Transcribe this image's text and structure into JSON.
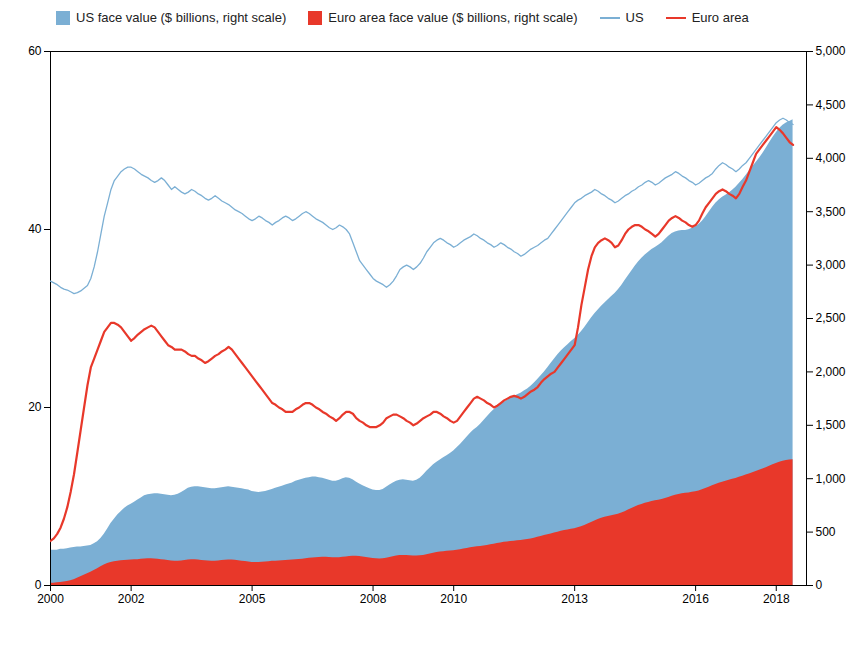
{
  "chart_data": {
    "type": "line",
    "x": [
      2000.0,
      2000.083,
      2000.167,
      2000.25,
      2000.333,
      2000.417,
      2000.5,
      2000.583,
      2000.667,
      2000.75,
      2000.833,
      2000.917,
      2001.0,
      2001.083,
      2001.167,
      2001.25,
      2001.333,
      2001.417,
      2001.5,
      2001.583,
      2001.667,
      2001.75,
      2001.833,
      2001.917,
      2002.0,
      2002.083,
      2002.167,
      2002.25,
      2002.333,
      2002.417,
      2002.5,
      2002.583,
      2002.667,
      2002.75,
      2002.833,
      2002.917,
      2003.0,
      2003.083,
      2003.167,
      2003.25,
      2003.333,
      2003.417,
      2003.5,
      2003.583,
      2003.667,
      2003.75,
      2003.833,
      2003.917,
      2004.0,
      2004.083,
      2004.167,
      2004.25,
      2004.333,
      2004.417,
      2004.5,
      2004.583,
      2004.667,
      2004.75,
      2004.833,
      2004.917,
      2005.0,
      2005.083,
      2005.167,
      2005.25,
      2005.333,
      2005.417,
      2005.5,
      2005.583,
      2005.667,
      2005.75,
      2005.833,
      2005.917,
      2006.0,
      2006.083,
      2006.167,
      2006.25,
      2006.333,
      2006.417,
      2006.5,
      2006.583,
      2006.667,
      2006.75,
      2006.833,
      2006.917,
      2007.0,
      2007.083,
      2007.167,
      2007.25,
      2007.333,
      2007.417,
      2007.5,
      2007.583,
      2007.667,
      2007.75,
      2007.833,
      2007.917,
      2008.0,
      2008.083,
      2008.167,
      2008.25,
      2008.333,
      2008.417,
      2008.5,
      2008.583,
      2008.667,
      2008.75,
      2008.833,
      2008.917,
      2009.0,
      2009.083,
      2009.167,
      2009.25,
      2009.333,
      2009.417,
      2009.5,
      2009.583,
      2009.667,
      2009.75,
      2009.833,
      2009.917,
      2010.0,
      2010.083,
      2010.167,
      2010.25,
      2010.333,
      2010.417,
      2010.5,
      2010.583,
      2010.667,
      2010.75,
      2010.833,
      2010.917,
      2011.0,
      2011.083,
      2011.167,
      2011.25,
      2011.333,
      2011.417,
      2011.5,
      2011.583,
      2011.667,
      2011.75,
      2011.833,
      2011.917,
      2012.0,
      2012.083,
      2012.167,
      2012.25,
      2012.333,
      2012.417,
      2012.5,
      2012.583,
      2012.667,
      2012.75,
      2012.833,
      2012.917,
      2013.0,
      2013.083,
      2013.167,
      2013.25,
      2013.333,
      2013.417,
      2013.5,
      2013.583,
      2013.667,
      2013.75,
      2013.833,
      2013.917,
      2014.0,
      2014.083,
      2014.167,
      2014.25,
      2014.333,
      2014.417,
      2014.5,
      2014.583,
      2014.667,
      2014.75,
      2014.833,
      2014.917,
      2015.0,
      2015.083,
      2015.167,
      2015.25,
      2015.333,
      2015.417,
      2015.5,
      2015.583,
      2015.667,
      2015.75,
      2015.833,
      2015.917,
      2016.0,
      2016.083,
      2016.167,
      2016.25,
      2016.333,
      2016.417,
      2016.5,
      2016.583,
      2016.667,
      2016.75,
      2016.833,
      2016.917,
      2017.0,
      2017.083,
      2017.167,
      2017.25,
      2017.333,
      2017.417,
      2017.5,
      2017.583,
      2017.667,
      2017.75,
      2017.833,
      2017.917,
      2018.0,
      2018.083,
      2018.167,
      2018.25,
      2018.333,
      2018.417
    ],
    "xlim": [
      2000,
      2018.75
    ],
    "xticks": [
      2000,
      2002,
      2005,
      2008,
      2010,
      2013,
      2016,
      2018
    ],
    "ylim": [
      0,
      60
    ],
    "yticks": [
      0,
      20,
      40,
      60
    ],
    "y2lim": [
      0,
      5000
    ],
    "y2ticks": [
      0,
      500,
      {
        "value": 1000,
        "label": "1,000"
      },
      {
        "value": 1500,
        "label": "1,500"
      },
      {
        "value": 2000,
        "label": "2,000"
      },
      {
        "value": 2500,
        "label": "2,500"
      },
      {
        "value": 3000,
        "label": "3,000"
      },
      {
        "value": 3500,
        "label": "3,500"
      },
      {
        "value": 4000,
        "label": "4,000"
      },
      {
        "value": 4500,
        "label": "4,500"
      },
      {
        "value": 5000,
        "label": "5,000"
      }
    ],
    "grid": false,
    "legend": "upper left",
    "series": [
      {
        "name": "US face value ($ billions, right scale)",
        "type": "area",
        "axis": "y2",
        "color": "#7bafd4",
        "values": [
          330,
          330,
          330,
          340,
          340,
          345,
          350,
          355,
          360,
          360,
          365,
          370,
          375,
          390,
          410,
          440,
          480,
          530,
          580,
          620,
          660,
          690,
          720,
          745,
          760,
          780,
          800,
          820,
          840,
          850,
          855,
          860,
          860,
          855,
          850,
          845,
          840,
          845,
          855,
          870,
          890,
          910,
          920,
          925,
          925,
          920,
          915,
          910,
          905,
          905,
          910,
          915,
          920,
          925,
          920,
          915,
          910,
          905,
          900,
          895,
          880,
          875,
          870,
          875,
          880,
          890,
          900,
          910,
          920,
          930,
          940,
          950,
          960,
          975,
          985,
          995,
          1005,
          1010,
          1015,
          1015,
          1010,
          1005,
          995,
          985,
          975,
          975,
          985,
          1000,
          1010,
          1005,
          990,
          970,
          950,
          935,
          920,
          905,
          895,
          890,
          890,
          900,
          920,
          940,
          960,
          975,
          985,
          990,
          985,
          980,
          975,
          985,
          1005,
          1035,
          1070,
          1100,
          1130,
          1155,
          1175,
          1195,
          1215,
          1235,
          1260,
          1290,
          1320,
          1355,
          1390,
          1425,
          1455,
          1480,
          1510,
          1545,
          1580,
          1615,
          1645,
          1670,
          1695,
          1715,
          1735,
          1755,
          1770,
          1785,
          1800,
          1820,
          1840,
          1865,
          1895,
          1930,
          1965,
          2000,
          2040,
          2080,
          2120,
          2160,
          2195,
          2225,
          2255,
          2285,
          2310,
          2340,
          2375,
          2415,
          2460,
          2505,
          2545,
          2580,
          2615,
          2645,
          2675,
          2705,
          2735,
          2770,
          2810,
          2855,
          2900,
          2945,
          2990,
          3030,
          3065,
          3095,
          3120,
          3145,
          3165,
          3185,
          3210,
          3240,
          3270,
          3295,
          3310,
          3320,
          3325,
          3325,
          3330,
          3345,
          3360,
          3380,
          3410,
          3450,
          3495,
          3540,
          3580,
          3610,
          3635,
          3655,
          3675,
          3700,
          3730,
          3765,
          3800,
          3840,
          3880,
          3920,
          3960,
          4000,
          4045,
          4095,
          4145,
          4195,
          4240,
          4280,
          4310,
          4330,
          4345,
          4360
        ]
      },
      {
        "name": "Euro area face value ($ billions, right scale)",
        "type": "area",
        "axis": "y2",
        "color": "#e8382a",
        "values": [
          20,
          22,
          25,
          28,
          32,
          38,
          45,
          55,
          68,
          82,
          95,
          110,
          125,
          140,
          158,
          175,
          192,
          205,
          215,
          222,
          228,
          232,
          235,
          237,
          238,
          240,
          242,
          245,
          248,
          250,
          250,
          248,
          245,
          242,
          238,
          234,
          230,
          228,
          228,
          230,
          234,
          238,
          240,
          240,
          238,
          235,
          232,
          230,
          228,
          228,
          230,
          233,
          236,
          238,
          238,
          236,
          232,
          228,
          224,
          220,
          216,
          215,
          215,
          217,
          220,
          223,
          226,
          228,
          230,
          232,
          234,
          236,
          238,
          240,
          243,
          246,
          250,
          254,
          258,
          261,
          263,
          264,
          264,
          263,
          261,
          260,
          261,
          264,
          268,
          272,
          274,
          274,
          272,
          268,
          263,
          258,
          253,
          250,
          249,
          251,
          256,
          263,
          270,
          276,
          280,
          282,
          281,
          279,
          276,
          276,
          278,
          282,
          288,
          295,
          302,
          308,
          313,
          317,
          320,
          323,
          326,
          330,
          335,
          341,
          347,
          353,
          358,
          362,
          366,
          370,
          375,
          381,
          387,
          393,
          399,
          404,
          408,
          412,
          415,
          418,
          421,
          425,
          430,
          436,
          443,
          451,
          459,
          467,
          475,
          483,
          491,
          499,
          507,
          514,
          520,
          526,
          532,
          540,
          550,
          562,
          576,
          591,
          605,
          618,
          629,
          638,
          645,
          652,
          659,
          667,
          678,
          691,
          706,
          721,
          735,
          748,
          759,
          769,
          778,
          786,
          793,
          799,
          806,
          815,
          825,
          836,
          845,
          853,
          859,
          863,
          867,
          872,
          878,
          886,
          896,
          908,
          921,
          934,
          946,
          957,
          967,
          976,
          985,
          994,
          1003,
          1013,
          1023,
          1034,
          1045,
          1056,
          1067,
          1078,
          1090,
          1103,
          1116,
          1130,
          1143,
          1154,
          1163,
          1170,
          1175,
          1178
        ]
      },
      {
        "name": "US",
        "type": "line",
        "color": "#7bafd4",
        "values": [
          34.2,
          34.0,
          33.8,
          33.5,
          33.3,
          33.2,
          33.0,
          32.8,
          32.9,
          33.1,
          33.4,
          33.7,
          34.5,
          35.8,
          37.5,
          39.5,
          41.5,
          43.0,
          44.5,
          45.5,
          46.0,
          46.5,
          46.8,
          47.0,
          47.0,
          46.8,
          46.5,
          46.2,
          46.0,
          45.8,
          45.5,
          45.3,
          45.5,
          45.8,
          45.5,
          45.0,
          44.5,
          44.8,
          44.5,
          44.2,
          44.0,
          44.2,
          44.5,
          44.3,
          44.0,
          43.8,
          43.5,
          43.3,
          43.5,
          43.8,
          43.5,
          43.2,
          43.0,
          42.8,
          42.5,
          42.2,
          42.0,
          41.8,
          41.5,
          41.2,
          41.0,
          41.2,
          41.5,
          41.3,
          41.0,
          40.8,
          40.5,
          40.8,
          41.0,
          41.3,
          41.5,
          41.3,
          41.0,
          41.2,
          41.5,
          41.8,
          42.0,
          41.8,
          41.5,
          41.2,
          41.0,
          40.8,
          40.5,
          40.2,
          40.0,
          40.2,
          40.5,
          40.3,
          40.0,
          39.5,
          38.5,
          37.5,
          36.5,
          36.0,
          35.5,
          35.0,
          34.5,
          34.2,
          34.0,
          33.8,
          33.5,
          33.8,
          34.2,
          34.8,
          35.5,
          35.8,
          36.0,
          35.8,
          35.5,
          35.8,
          36.2,
          36.8,
          37.5,
          38.0,
          38.5,
          38.8,
          39.0,
          38.8,
          38.5,
          38.3,
          38.0,
          38.2,
          38.5,
          38.8,
          39.0,
          39.2,
          39.5,
          39.3,
          39.0,
          38.8,
          38.5,
          38.3,
          38.0,
          38.2,
          38.5,
          38.3,
          38.0,
          37.8,
          37.5,
          37.3,
          37.0,
          37.2,
          37.5,
          37.8,
          38.0,
          38.2,
          38.5,
          38.8,
          39.0,
          39.5,
          40.0,
          40.5,
          41.0,
          41.5,
          42.0,
          42.5,
          43.0,
          43.3,
          43.5,
          43.8,
          44.0,
          44.2,
          44.5,
          44.3,
          44.0,
          43.8,
          43.5,
          43.3,
          43.0,
          43.2,
          43.5,
          43.8,
          44.0,
          44.3,
          44.5,
          44.8,
          45.0,
          45.3,
          45.5,
          45.3,
          45.0,
          45.2,
          45.5,
          45.8,
          46.0,
          46.2,
          46.5,
          46.3,
          46.0,
          45.8,
          45.5,
          45.3,
          45.0,
          45.2,
          45.5,
          45.8,
          46.0,
          46.3,
          46.8,
          47.2,
          47.5,
          47.3,
          47.0,
          46.8,
          46.5,
          46.8,
          47.2,
          47.5,
          48.0,
          48.5,
          49.0,
          49.5,
          50.0,
          50.5,
          51.0,
          51.5,
          52.0,
          52.3,
          52.5,
          52.3,
          52.0,
          51.8
        ]
      },
      {
        "name": "Euro area",
        "type": "line",
        "color": "#e8382a",
        "values": [
          5.0,
          5.3,
          5.8,
          6.5,
          7.5,
          8.8,
          10.5,
          12.5,
          15.0,
          17.5,
          20.0,
          22.5,
          24.5,
          25.5,
          26.5,
          27.5,
          28.5,
          29.0,
          29.5,
          29.5,
          29.3,
          29.0,
          28.5,
          28.0,
          27.5,
          27.8,
          28.2,
          28.5,
          28.8,
          29.0,
          29.2,
          29.0,
          28.5,
          28.0,
          27.5,
          27.0,
          26.8,
          26.5,
          26.5,
          26.5,
          26.3,
          26.0,
          25.8,
          25.8,
          25.5,
          25.3,
          25.0,
          25.2,
          25.5,
          25.8,
          26.0,
          26.3,
          26.5,
          26.8,
          26.5,
          26.0,
          25.5,
          25.0,
          24.5,
          24.0,
          23.5,
          23.0,
          22.5,
          22.0,
          21.5,
          21.0,
          20.5,
          20.3,
          20.0,
          19.8,
          19.5,
          19.5,
          19.5,
          19.8,
          20.0,
          20.3,
          20.5,
          20.5,
          20.3,
          20.0,
          19.8,
          19.5,
          19.3,
          19.0,
          18.8,
          18.5,
          18.8,
          19.2,
          19.5,
          19.5,
          19.3,
          18.8,
          18.5,
          18.3,
          18.0,
          17.8,
          17.8,
          17.8,
          18.0,
          18.3,
          18.8,
          19.0,
          19.2,
          19.2,
          19.0,
          18.8,
          18.5,
          18.3,
          18.0,
          18.2,
          18.5,
          18.8,
          19.0,
          19.2,
          19.5,
          19.5,
          19.3,
          19.0,
          18.8,
          18.5,
          18.3,
          18.5,
          19.0,
          19.5,
          20.0,
          20.5,
          21.0,
          21.2,
          21.0,
          20.8,
          20.5,
          20.3,
          20.0,
          20.2,
          20.5,
          20.8,
          21.0,
          21.2,
          21.3,
          21.2,
          21.0,
          21.2,
          21.5,
          21.8,
          22.0,
          22.3,
          22.8,
          23.2,
          23.5,
          23.8,
          24.0,
          24.5,
          25.0,
          25.5,
          26.0,
          26.5,
          27.0,
          29.0,
          31.5,
          33.5,
          35.5,
          37.0,
          38.0,
          38.5,
          38.8,
          39.0,
          38.8,
          38.5,
          38.0,
          38.2,
          38.8,
          39.5,
          40.0,
          40.3,
          40.5,
          40.5,
          40.3,
          40.0,
          39.8,
          39.5,
          39.2,
          39.5,
          40.0,
          40.5,
          41.0,
          41.3,
          41.5,
          41.3,
          41.0,
          40.8,
          40.5,
          40.3,
          40.5,
          41.0,
          41.8,
          42.5,
          43.0,
          43.5,
          44.0,
          44.3,
          44.5,
          44.3,
          44.0,
          43.8,
          43.5,
          44.0,
          44.8,
          45.5,
          46.5,
          47.5,
          48.5,
          49.0,
          49.5,
          50.0,
          50.5,
          51.0,
          51.5,
          51.2,
          50.8,
          50.3,
          49.8,
          49.5
        ]
      }
    ]
  }
}
